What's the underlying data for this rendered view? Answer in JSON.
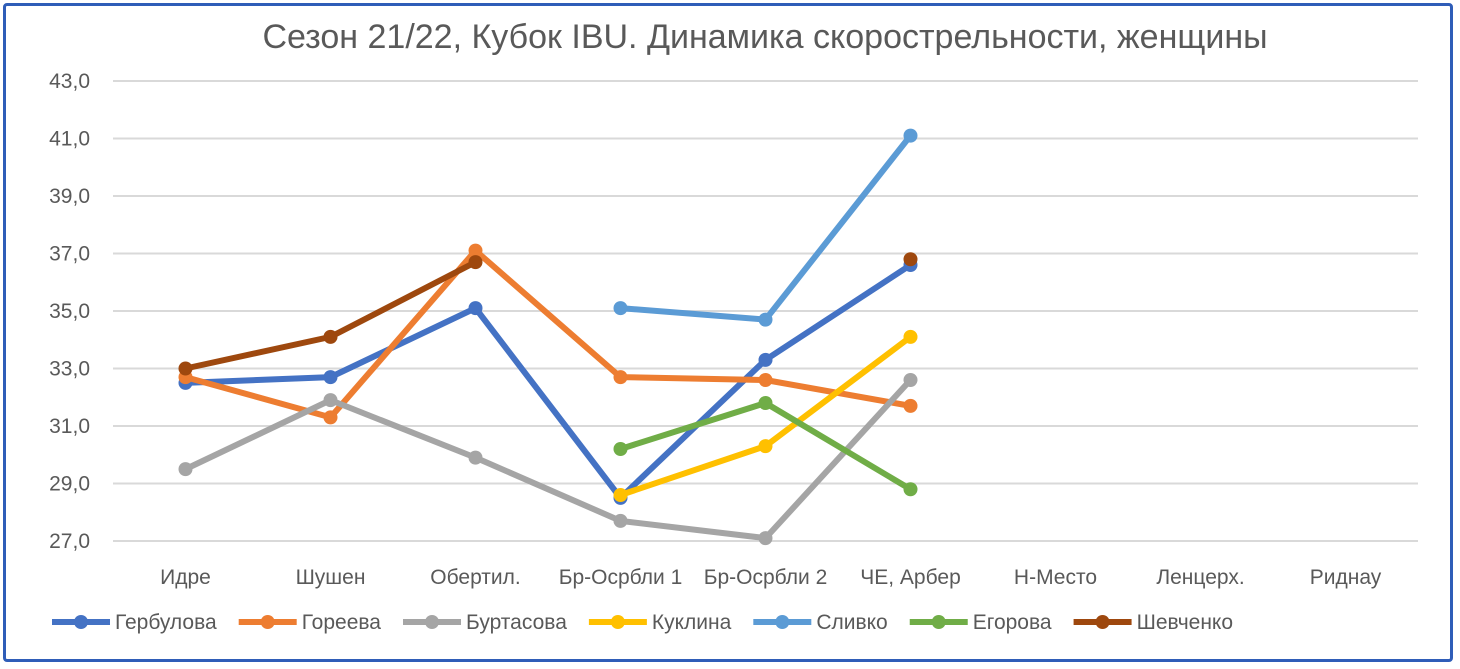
{
  "chart_data": {
    "type": "line",
    "title": "Сезон 21/22, Кубок IBU. Динамика скорострельности,  женщины",
    "xlabel": "",
    "ylabel": "",
    "categories": [
      "Идре",
      "Шушен",
      "Обертил.",
      "Бр-Осрбли 1",
      "Бр-Осрбли 2",
      "ЧЕ, Арбер",
      "Н-Место",
      "Ленцерх.",
      "Риднау"
    ],
    "ylim": [
      27,
      43
    ],
    "yticks": [
      "27,0",
      "29,0",
      "31,0",
      "33,0",
      "35,0",
      "37,0",
      "39,0",
      "41,0",
      "43,0"
    ],
    "grid": true,
    "legend_position": "bottom",
    "series": [
      {
        "name": "Гербулова",
        "color": "#4472C4",
        "values": [
          32.5,
          32.7,
          35.1,
          28.5,
          33.3,
          36.6,
          null,
          null,
          null
        ]
      },
      {
        "name": "Гореева",
        "color": "#ED7D31",
        "values": [
          32.7,
          31.3,
          37.1,
          32.7,
          32.6,
          31.7,
          null,
          null,
          null
        ]
      },
      {
        "name": "Буртасова",
        "color": "#A5A5A5",
        "values": [
          29.5,
          31.9,
          29.9,
          27.7,
          27.1,
          32.6,
          null,
          null,
          null
        ]
      },
      {
        "name": "Куклина",
        "color": "#FFC000",
        "values": [
          null,
          null,
          null,
          28.6,
          30.3,
          34.1,
          null,
          null,
          null
        ]
      },
      {
        "name": "Сливко",
        "color": "#5B9BD5",
        "values": [
          null,
          null,
          null,
          35.1,
          34.7,
          41.1,
          null,
          null,
          null
        ]
      },
      {
        "name": "Егорова",
        "color": "#70AD47",
        "values": [
          null,
          null,
          null,
          30.2,
          31.8,
          28.8,
          null,
          null,
          null
        ]
      },
      {
        "name": "Шевченко",
        "color": "#9E480E",
        "values": [
          33.0,
          34.1,
          36.7,
          null,
          null,
          36.8,
          null,
          null,
          null
        ]
      }
    ]
  }
}
